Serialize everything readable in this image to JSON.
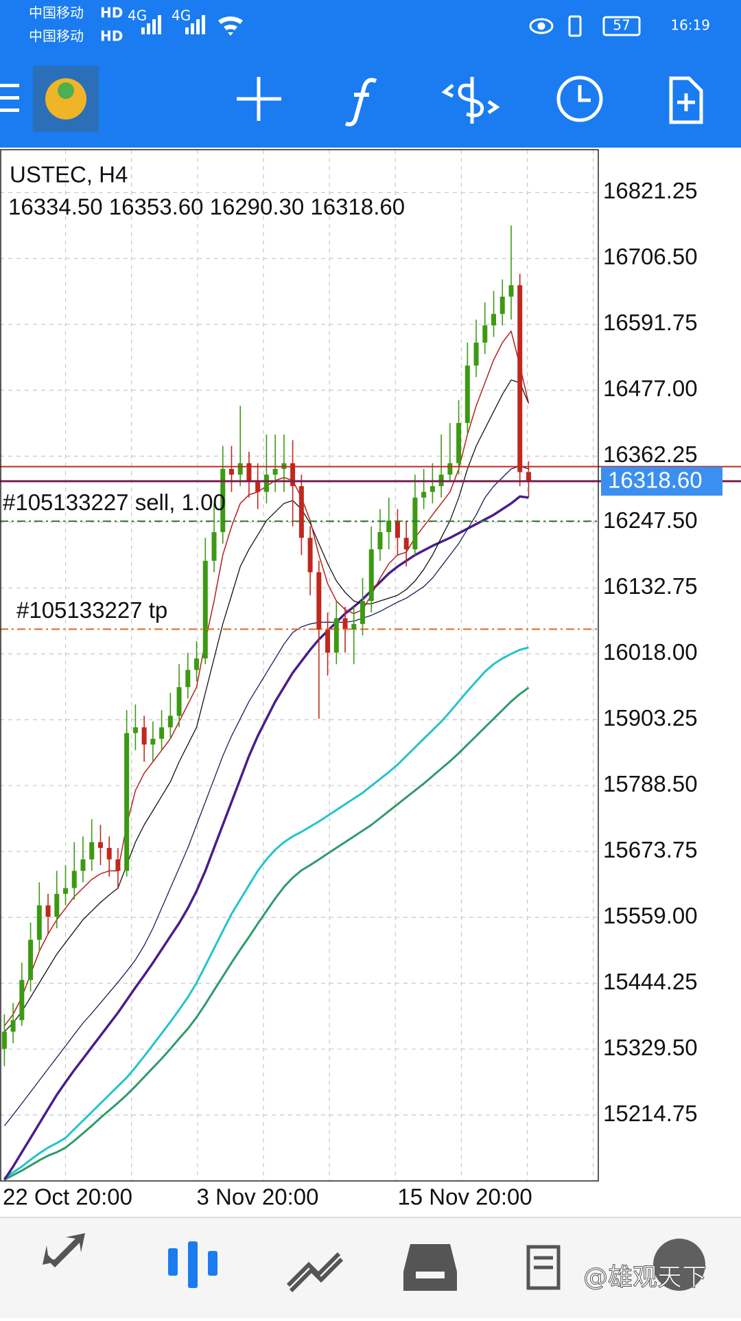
{
  "status_bar": {
    "carrier_1": "中国移动",
    "carrier_2": "中国移动",
    "hd_1": "HD",
    "hd_2": "HD",
    "network_1": "4G",
    "network_2": "4G",
    "battery": "57",
    "time": "16:19"
  },
  "chart_data": {
    "type": "candlestick",
    "symbol": "USTEC, H4",
    "ohlc_text": "16334.50 16353.60 16290.30 16318.60",
    "categories": [
      null,
      null,
      null,
      null,
      null,
      null,
      null,
      "22 Oct 20:00",
      null,
      null,
      null,
      null,
      null,
      null,
      null,
      null,
      null,
      null,
      null,
      null,
      null,
      null,
      "3 Nov 20:00",
      null,
      null,
      null,
      null,
      null,
      null,
      null,
      null,
      null,
      null,
      null,
      null,
      null,
      null,
      null,
      null,
      null,
      null,
      null,
      null,
      null,
      null,
      "15 Nov 20:00",
      null,
      null,
      null,
      null,
      null,
      null,
      null,
      null,
      null,
      null,
      null,
      null,
      null,
      null,
      null
    ],
    "open": [
      15330,
      15360,
      15380,
      15450,
      15520,
      15580,
      15560,
      15600,
      15610,
      15640,
      15660,
      15690,
      15680,
      15660,
      15640,
      15880,
      15890,
      15860,
      15870,
      15890,
      15910,
      15960,
      15990,
      16010,
      16180,
      16230,
      16340,
      16330,
      16350,
      16320,
      16300,
      16330,
      16340,
      16350,
      16310,
      16220,
      16160,
      16060,
      16020,
      16080,
      16060,
      16070,
      16110,
      16200,
      16230,
      16250,
      16220,
      16200,
      16290,
      16300,
      16310,
      16330,
      16350,
      16420,
      16520,
      16560,
      16590,
      16610,
      16640,
      16660,
      16334.5
    ],
    "high": [
      15390,
      15410,
      15480,
      15550,
      15620,
      15600,
      15640,
      15650,
      15690,
      15700,
      15730,
      15720,
      15700,
      15680,
      15920,
      15930,
      15910,
      15900,
      15920,
      15950,
      16000,
      16020,
      16040,
      16220,
      16280,
      16380,
      16380,
      16450,
      16370,
      16350,
      16400,
      16400,
      16400,
      16390,
      16330,
      16240,
      16180,
      16090,
      16110,
      16100,
      16100,
      16150,
      16240,
      16270,
      16290,
      16270,
      16250,
      16330,
      16340,
      16350,
      16400,
      16420,
      16460,
      16560,
      16600,
      16630,
      16650,
      16670,
      16764,
      16680,
      16353.6
    ],
    "low": [
      15300,
      15340,
      15370,
      15430,
      15500,
      15530,
      15540,
      15580,
      15590,
      15620,
      15640,
      15650,
      15630,
      15610,
      15630,
      15850,
      15830,
      15830,
      15850,
      15870,
      15890,
      15940,
      15970,
      16000,
      16160,
      16210,
      16300,
      16310,
      16290,
      16270,
      16280,
      16300,
      16300,
      16240,
      16190,
      16120,
      15905,
      15980,
      16000,
      16020,
      16000,
      16050,
      16090,
      16180,
      16200,
      16190,
      16170,
      16190,
      16270,
      16280,
      16290,
      16320,
      16330,
      16400,
      16500,
      16540,
      16570,
      16590,
      16600,
      16310,
      16290.3
    ],
    "close": [
      15360,
      15380,
      15450,
      15520,
      15580,
      15560,
      15600,
      15610,
      15640,
      15660,
      15690,
      15680,
      15660,
      15640,
      15880,
      15890,
      15860,
      15870,
      15890,
      15910,
      15960,
      15990,
      16010,
      16180,
      16230,
      16340,
      16330,
      16350,
      16320,
      16300,
      16330,
      16340,
      16350,
      16310,
      16220,
      16160,
      16060,
      16020,
      16080,
      16060,
      16070,
      16110,
      16200,
      16230,
      16250,
      16220,
      16200,
      16290,
      16300,
      16310,
      16330,
      16350,
      16420,
      16520,
      16560,
      16590,
      16610,
      16640,
      16660,
      16334.5,
      16318.6
    ],
    "up_color": "#3c9a12",
    "down_color": "#c0271d",
    "series": [
      {
        "color": "#22c4cc",
        "line_width": 3,
        "values": [
          15105,
          15115,
          15125,
          15137,
          15148,
          15158,
          15166,
          15175,
          15190,
          15205,
          15220,
          15235,
          15250,
          15265,
          15280,
          15298,
          15317,
          15337,
          15357,
          15377,
          15398,
          15420,
          15445,
          15475,
          15505,
          15535,
          15565,
          15590,
          15615,
          15640,
          15660,
          15677,
          15690,
          15700,
          15708,
          15717,
          15726,
          15736,
          15746,
          15756,
          15766,
          15776,
          15788,
          15800,
          15812,
          15825,
          15840,
          15855,
          15870,
          15885,
          15900,
          15917,
          15935,
          15953,
          15970,
          15987,
          16000,
          16010,
          16018,
          16025,
          16029
        ]
      },
      {
        "color": "#2f9a6c",
        "line_width": 3,
        "values": [
          15102,
          15110,
          15118,
          15127,
          15136,
          15144,
          15150,
          15158,
          15170,
          15183,
          15196,
          15210,
          15223,
          15236,
          15250,
          15265,
          15281,
          15297,
          15313,
          15330,
          15348,
          15365,
          15385,
          15408,
          15432,
          15456,
          15480,
          15503,
          15525,
          15548,
          15570,
          15592,
          15612,
          15628,
          15641,
          15650,
          15660,
          15670,
          15680,
          15690,
          15700,
          15710,
          15720,
          15732,
          15744,
          15756,
          15768,
          15780,
          15792,
          15805,
          15818,
          15831,
          15845,
          15860,
          15875,
          15890,
          15905,
          15920,
          15935,
          15948,
          15959
        ]
      },
      {
        "color": "#4a1d8c",
        "line_width": 3.5,
        "values": [
          15102,
          15125,
          15150,
          15175,
          15200,
          15225,
          15250,
          15272,
          15293,
          15313,
          15333,
          15353,
          15373,
          15393,
          15415,
          15437,
          15458,
          15480,
          15503,
          15526,
          15549,
          15575,
          15605,
          15640,
          15680,
          15720,
          15760,
          15800,
          15840,
          15875,
          15905,
          15935,
          15960,
          15985,
          16005,
          16025,
          16043,
          16058,
          16073,
          16088,
          16100,
          16113,
          16128,
          16143,
          16158,
          16170,
          16180,
          16190,
          16198,
          16206,
          16213,
          16220,
          16228,
          16236,
          16244,
          16252,
          16260,
          16270,
          16280,
          16292,
          16290
        ]
      },
      {
        "color": "#1c1c5a",
        "line_width": 1.3,
        "values": [
          15196,
          15215,
          15235,
          15255,
          15275,
          15295,
          15315,
          15335,
          15355,
          15375,
          15392,
          15410,
          15428,
          15446,
          15465,
          15485,
          15510,
          15540,
          15575,
          15610,
          15645,
          15680,
          15720,
          15760,
          15800,
          15840,
          15875,
          15905,
          15935,
          15960,
          15985,
          16010,
          16035,
          16055,
          16065,
          16070,
          16073,
          16073,
          16073,
          16073,
          16075,
          16080,
          16085,
          16092,
          16100,
          16108,
          16115,
          16125,
          16135,
          16150,
          16170,
          16190,
          16210,
          16235,
          16260,
          16290,
          16310,
          16325,
          16340,
          16345,
          16340
        ]
      },
      {
        "color": "#111111",
        "line_width": 1.3,
        "values": [
          15360,
          15375,
          15395,
          15420,
          15445,
          15470,
          15495,
          15515,
          15535,
          15555,
          15570,
          15585,
          15598,
          15610,
          15650,
          15690,
          15720,
          15745,
          15770,
          15795,
          15830,
          15860,
          15890,
          15950,
          16010,
          16070,
          16120,
          16170,
          16200,
          16225,
          16250,
          16265,
          16280,
          16285,
          16270,
          16245,
          16210,
          16175,
          16145,
          16125,
          16110,
          16105,
          16105,
          16110,
          16115,
          16120,
          16130,
          16145,
          16165,
          16190,
          16220,
          16250,
          16290,
          16340,
          16380,
          16410,
          16440,
          16470,
          16495,
          16490,
          16454
        ]
      },
      {
        "color": "#b51f1a",
        "line_width": 1.5,
        "values": [
          15370,
          15390,
          15420,
          15460,
          15500,
          15530,
          15555,
          15575,
          15595,
          15610,
          15625,
          15635,
          15640,
          15640,
          15720,
          15780,
          15810,
          15830,
          15850,
          15870,
          15900,
          15930,
          15960,
          16040,
          16110,
          16190,
          16240,
          16280,
          16295,
          16300,
          16310,
          16320,
          16325,
          16320,
          16290,
          16250,
          16190,
          16140,
          16110,
          16095,
          16088,
          16095,
          16120,
          16150,
          16175,
          16190,
          16195,
          16220,
          16240,
          16260,
          16280,
          16300,
          16340,
          16400,
          16450,
          16490,
          16530,
          16560,
          16580,
          16520,
          16454
        ]
      }
    ],
    "ylim": [
      15100,
      16896
    ],
    "yticks": [
      16821.25,
      {
        "value": 16706.5,
        "label": "16706.50"
      },
      16591.75,
      {
        "value": 16477,
        "label": "16477.00"
      },
      16362.25,
      {
        "value": 16247.5,
        "label": "16247.50"
      },
      16132.75,
      {
        "value": 16018,
        "label": "16018.00"
      },
      15903.25,
      {
        "value": 15788.5,
        "label": "15788.50"
      },
      15673.75,
      {
        "value": 15559,
        "label": "15559.00"
      },
      15444.25,
      {
        "value": 15329.5,
        "label": "15329.50"
      },
      15214.75
    ],
    "grid": true,
    "ask_price": 16344,
    "ask_color": "#c0271d",
    "current_price": {
      "value": 16318.6,
      "label": "16318.60"
    },
    "current_color": "#7a1f4f",
    "current_tag_color": "#3b8ff0",
    "orders": [
      {
        "label": "#105133227 sell, 1.00",
        "price": 16249,
        "color": "#2e7d32"
      },
      {
        "label": "#105133227 tp",
        "price": 16061,
        "color": "#e0662a"
      }
    ]
  },
  "bottom_nav": {
    "watermark": "@雄观天下"
  }
}
